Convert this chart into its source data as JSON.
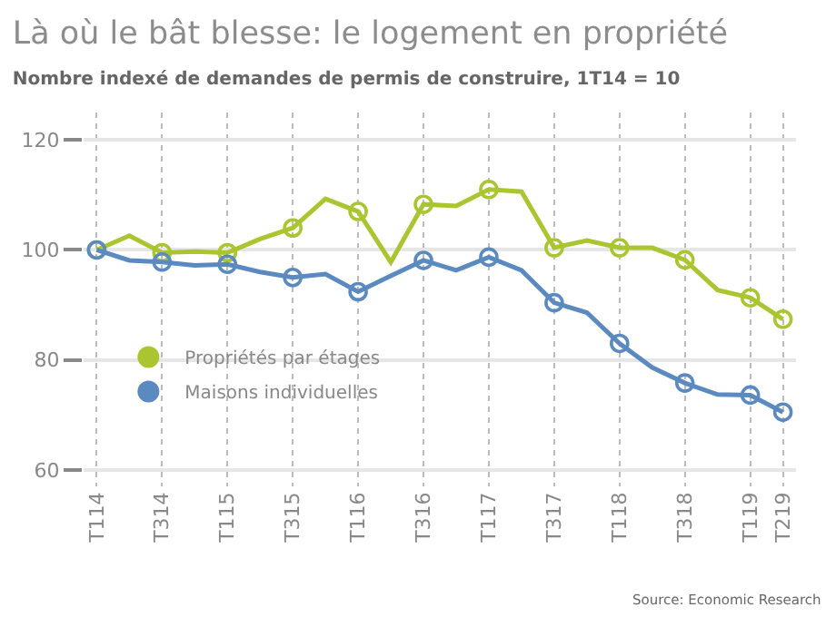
{
  "chart_data": {
    "type": "line",
    "title": "Là où le bât blesse: le logement en propriété",
    "subtitle": "Nombre indexé de demandes de permis de construire, 1T14 = 10",
    "categories": [
      "T114",
      null,
      "T314",
      null,
      "T115",
      null,
      "T315",
      null,
      "T116",
      null,
      "T316",
      null,
      "T117",
      null,
      "T317",
      null,
      "T118",
      null,
      "T318",
      null,
      "T119",
      "T219"
    ],
    "series": [
      {
        "name": "Propriétés par étages",
        "color": "#a9c52f",
        "values": [
          100,
          102.6,
          99.5,
          99.7,
          99.5,
          102,
          104,
          109.3,
          107,
          97.8,
          108.3,
          108,
          111,
          110.6,
          100.4,
          101.7,
          100.4,
          100.4,
          98.2,
          92.7,
          91.3,
          87.4
        ]
      },
      {
        "name": "Maisons individuelles",
        "color": "#5a8ac0",
        "values": [
          100,
          98.1,
          97.8,
          97.2,
          97.4,
          96,
          95,
          95.6,
          92.4,
          95.3,
          98.1,
          96.3,
          98.7,
          96.3,
          90.4,
          88.6,
          83,
          78.6,
          75.8,
          73.7,
          73.6,
          70.5
        ]
      }
    ],
    "ylim": [
      57,
      125
    ],
    "yticks": [
      60,
      80,
      100,
      120
    ],
    "grid": true,
    "legend": "left",
    "marker": "circle",
    "line_style": "solid",
    "annotations": [
      "Source: Economic Research"
    ]
  }
}
